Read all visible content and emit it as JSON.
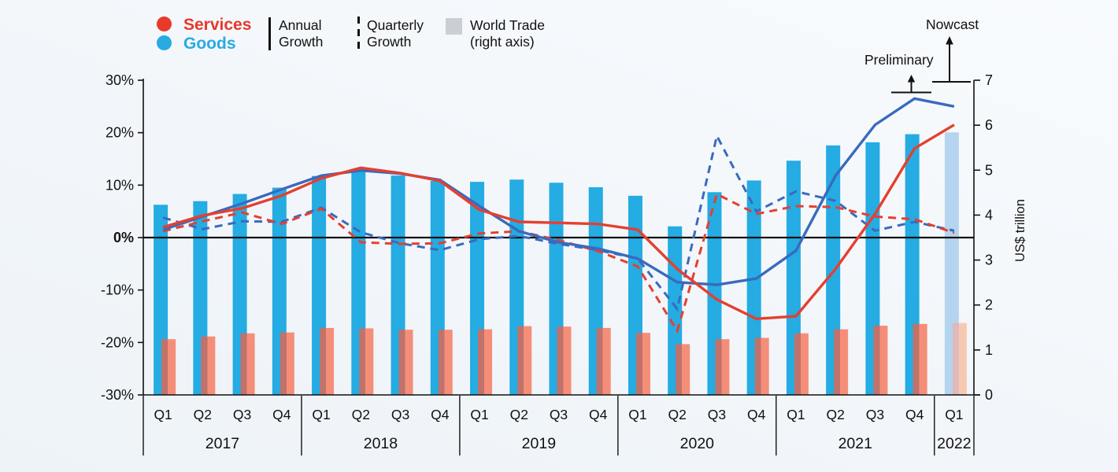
{
  "legend": {
    "services_label": "Services",
    "goods_label": "Goods",
    "annual_label": "Annual Growth",
    "quarterly_label": "Quarterly Growth",
    "world_trade_label": "World Trade (right axis)"
  },
  "annotations": {
    "preliminary": "Preliminary",
    "nowcast": "Nowcast"
  },
  "axes": {
    "left_tick_labels": [
      "30%",
      "20%",
      "10%",
      "0%",
      "-10%",
      "-20%",
      "-30%"
    ],
    "left_tick_values": [
      30,
      20,
      10,
      0,
      -10,
      -20,
      -30
    ],
    "left_range": [
      -30,
      30
    ],
    "right_tick_labels": [
      "7",
      "6",
      "5",
      "4",
      "3",
      "2",
      "1",
      "0"
    ],
    "right_tick_values": [
      7,
      6,
      5,
      4,
      3,
      2,
      1,
      0
    ],
    "right_range": [
      0,
      7
    ],
    "right_axis_title": "US$ trillion"
  },
  "colors": {
    "goods_bar": "#24ACE3",
    "services_bar": "#F58E79",
    "services_bar_overlap": "#C0726B",
    "goods_bar_nowcast": "#B5D4EF",
    "services_bar_nowcast": "#F7C9B3",
    "services_bar_nowcast_overlap": "#DFB9BC",
    "goods_line": "#3A6ABD",
    "services_line": "#E63F2E",
    "services_text": "#E8392B",
    "goods_text": "#29ABE2",
    "world_trade_legend": "#CBCFD3",
    "axis": "#111111"
  },
  "chart_data": {
    "type": "bar+line combo, dual axis",
    "years": [
      {
        "label": "2017",
        "quarters": [
          "Q1",
          "Q2",
          "Q3",
          "Q4"
        ]
      },
      {
        "label": "2018",
        "quarters": [
          "Q1",
          "Q2",
          "Q3",
          "Q4"
        ]
      },
      {
        "label": "2019",
        "quarters": [
          "Q1",
          "Q2",
          "Q3",
          "Q4"
        ]
      },
      {
        "label": "2020",
        "quarters": [
          "Q1",
          "Q2",
          "Q3",
          "Q4"
        ]
      },
      {
        "label": "2021",
        "quarters": [
          "Q1",
          "Q2",
          "Q3",
          "Q4"
        ]
      },
      {
        "label": "2022",
        "quarters": [
          "Q1"
        ]
      }
    ],
    "nowcast_index": 20,
    "left_axis_units": "percent year growth",
    "right_axis_units": "US$ trillion",
    "series": [
      {
        "name": "Goods world trade (US$ trillion)",
        "type": "bar",
        "axis": "right",
        "values": [
          4.23,
          4.31,
          4.47,
          4.61,
          4.87,
          4.97,
          4.88,
          4.76,
          4.74,
          4.79,
          4.72,
          4.62,
          4.43,
          3.75,
          4.51,
          4.77,
          5.21,
          5.55,
          5.62,
          5.8,
          5.84
        ]
      },
      {
        "name": "Services world trade (US$ trillion)",
        "type": "bar",
        "axis": "right",
        "values": [
          1.24,
          1.3,
          1.37,
          1.39,
          1.49,
          1.48,
          1.45,
          1.45,
          1.46,
          1.53,
          1.52,
          1.49,
          1.38,
          1.13,
          1.24,
          1.27,
          1.37,
          1.46,
          1.54,
          1.58,
          1.6
        ]
      },
      {
        "name": "Goods quarterly growth (%)",
        "type": "line",
        "style": "dashed",
        "axis": "left",
        "values": [
          3.8,
          1.6,
          3.1,
          3.0,
          5.7,
          1.0,
          -1.1,
          -2.4,
          -0.3,
          0.3,
          -1.2,
          -2.4,
          -4.0,
          -13.6,
          19.4,
          5.0,
          8.8,
          7.0,
          1.3,
          3.0,
          1.3
        ]
      },
      {
        "name": "Services quarterly growth (%)",
        "type": "line",
        "style": "dashed",
        "axis": "left",
        "values": [
          1.2,
          3.1,
          4.8,
          2.6,
          5.5,
          -0.9,
          -1.2,
          -1.1,
          0.8,
          1.2,
          -0.5,
          -2.6,
          -5.5,
          -17.8,
          8.3,
          4.5,
          6.0,
          5.8,
          4.0,
          3.5,
          0.9
        ]
      },
      {
        "name": "Goods annual growth (%)",
        "type": "line",
        "style": "solid",
        "axis": "left",
        "values": [
          1.5,
          4.0,
          6.5,
          9.2,
          11.8,
          12.8,
          12.2,
          11.0,
          6.0,
          1.2,
          -0.9,
          -2.1,
          -4.0,
          -8.5,
          -9.0,
          -7.8,
          -2.5,
          11.8,
          21.5,
          26.5,
          25.0
        ]
      },
      {
        "name": "Services annual growth (%)",
        "type": "line",
        "style": "solid",
        "axis": "left",
        "values": [
          2.0,
          4.2,
          5.6,
          8.0,
          11.3,
          13.3,
          12.3,
          10.8,
          5.3,
          3.0,
          2.8,
          2.6,
          1.5,
          -6.0,
          -11.8,
          -15.5,
          -15.0,
          -6.0,
          4.5,
          17.0,
          21.5
        ]
      }
    ]
  }
}
